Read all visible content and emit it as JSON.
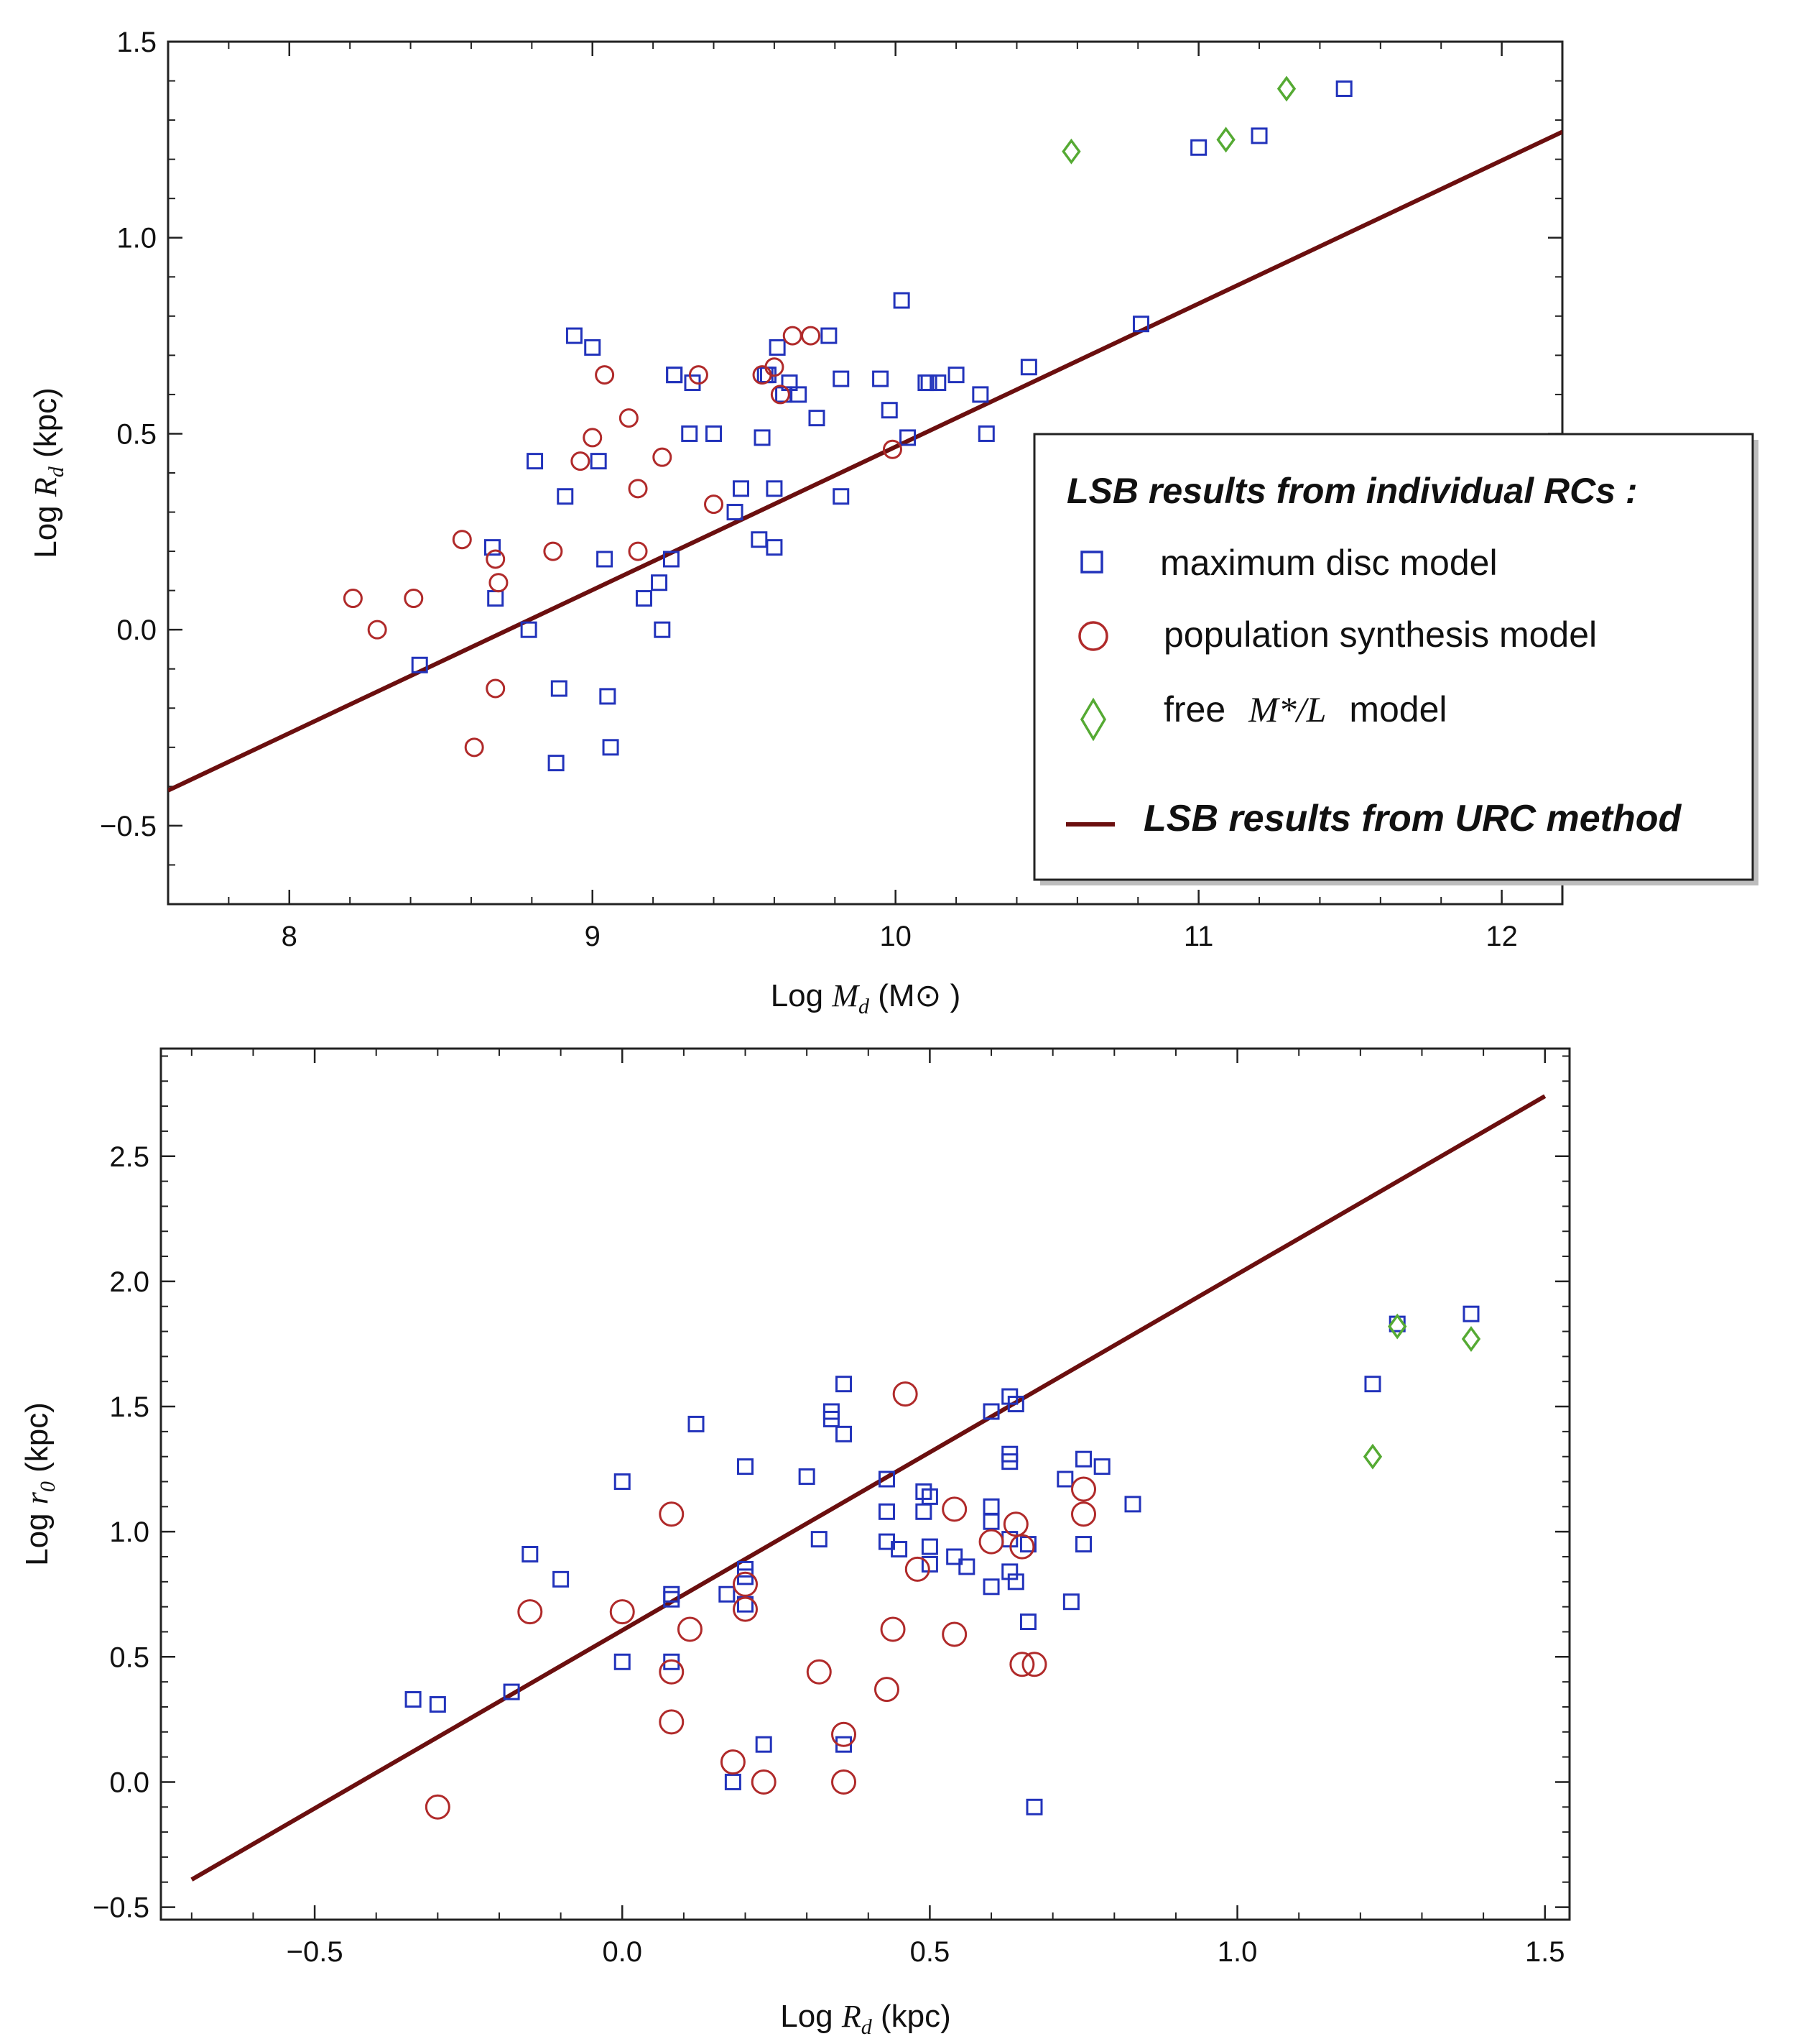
{
  "colors": {
    "square": "#2233bb",
    "circle": "#b02a2a",
    "diamond": "#55aa33",
    "fit_line": "#6b0f0f"
  },
  "legend": {
    "title": "LSB results from individual RCs :",
    "square_label": "maximum disc model",
    "circle_label": "population synthesis model",
    "diamond_label_pre": "free",
    "diamond_label_math": "M*/L",
    "diamond_label_post": "model",
    "line_label": "LSB results from URC method"
  },
  "chart_data": [
    {
      "type": "scatter",
      "title": "",
      "xlabel_prefix": "Log",
      "xlabel_var": "Md",
      "xlabel_unit": "(M⊙ )",
      "ylabel_prefix": "Log",
      "ylabel_var": "Rd",
      "ylabel_unit": "(kpc)",
      "xlim": [
        7.6,
        12.2
      ],
      "ylim": [
        -0.7,
        1.5
      ],
      "xticks": [
        "8",
        "9",
        "10",
        "11",
        "12"
      ],
      "xtick_values": [
        8,
        9,
        10,
        11,
        12
      ],
      "yticks": [
        "−0.5",
        "0.0",
        "0.5",
        "1.0",
        "1.5"
      ],
      "ytick_values": [
        -0.5,
        0,
        0.5,
        1.0,
        1.5
      ],
      "fit_line": {
        "x": [
          7.6,
          12.2
        ],
        "y": [
          -0.41,
          1.27
        ]
      },
      "series": [
        {
          "name": "maximum disc model",
          "marker": "square",
          "points": [
            [
              8.43,
              -0.09
            ],
            [
              8.67,
              0.21
            ],
            [
              8.68,
              0.08
            ],
            [
              8.79,
              0.0
            ],
            [
              8.81,
              0.43
            ],
            [
              8.88,
              -0.34
            ],
            [
              8.89,
              -0.15
            ],
            [
              8.91,
              0.34
            ],
            [
              8.94,
              0.75
            ],
            [
              9.0,
              0.72
            ],
            [
              9.02,
              0.43
            ],
            [
              9.04,
              0.18
            ],
            [
              9.05,
              -0.17
            ],
            [
              9.06,
              -0.3
            ],
            [
              9.17,
              0.08
            ],
            [
              9.22,
              0.12
            ],
            [
              9.23,
              0.0
            ],
            [
              9.26,
              0.18
            ],
            [
              9.27,
              0.65
            ],
            [
              9.27,
              0.65
            ],
            [
              9.32,
              0.5
            ],
            [
              9.33,
              0.63
            ],
            [
              9.4,
              0.5
            ],
            [
              9.47,
              0.3
            ],
            [
              9.49,
              0.36
            ],
            [
              9.55,
              0.23
            ],
            [
              9.56,
              0.49
            ],
            [
              9.57,
              0.65
            ],
            [
              9.58,
              0.65
            ],
            [
              9.6,
              0.21
            ],
            [
              9.6,
              0.36
            ],
            [
              9.61,
              0.72
            ],
            [
              9.63,
              0.6
            ],
            [
              9.65,
              0.63
            ],
            [
              9.68,
              0.6
            ],
            [
              9.74,
              0.54
            ],
            [
              9.78,
              0.75
            ],
            [
              9.82,
              0.34
            ],
            [
              9.82,
              0.64
            ],
            [
              9.95,
              0.64
            ],
            [
              9.98,
              0.56
            ],
            [
              10.02,
              0.84
            ],
            [
              10.04,
              0.49
            ],
            [
              10.1,
              0.63
            ],
            [
              10.11,
              0.63
            ],
            [
              10.14,
              0.63
            ],
            [
              10.2,
              0.65
            ],
            [
              10.28,
              0.6
            ],
            [
              10.3,
              0.5
            ],
            [
              10.44,
              0.67
            ],
            [
              10.81,
              0.78
            ],
            [
              11.0,
              1.23
            ],
            [
              11.2,
              1.26
            ],
            [
              11.48,
              1.38
            ]
          ]
        },
        {
          "name": "population synthesis model",
          "marker": "circle",
          "points": [
            [
              8.21,
              0.08
            ],
            [
              8.29,
              0.0
            ],
            [
              8.41,
              0.08
            ],
            [
              8.57,
              0.23
            ],
            [
              8.61,
              -0.3
            ],
            [
              8.68,
              0.18
            ],
            [
              8.69,
              0.12
            ],
            [
              8.68,
              -0.15
            ],
            [
              8.87,
              0.2
            ],
            [
              8.96,
              0.43
            ],
            [
              9.0,
              0.49
            ],
            [
              9.04,
              0.65
            ],
            [
              9.12,
              0.54
            ],
            [
              9.15,
              0.36
            ],
            [
              9.15,
              0.2
            ],
            [
              9.23,
              0.44
            ],
            [
              9.35,
              0.65
            ],
            [
              9.4,
              0.32
            ],
            [
              9.56,
              0.65
            ],
            [
              9.6,
              0.67
            ],
            [
              9.62,
              0.6
            ],
            [
              9.66,
              0.75
            ],
            [
              9.72,
              0.75
            ],
            [
              9.99,
              0.46
            ]
          ]
        },
        {
          "name": "free M*/L model",
          "marker": "diamond",
          "points": [
            [
              10.58,
              1.22
            ],
            [
              11.09,
              1.25
            ],
            [
              11.29,
              1.38
            ]
          ]
        }
      ]
    },
    {
      "type": "scatter",
      "title": "",
      "xlabel_prefix": "Log",
      "xlabel_var": "Rd",
      "xlabel_unit": "(kpc)",
      "ylabel_prefix": "Log",
      "ylabel_var": "r0",
      "ylabel_unit": "(kpc)",
      "xlim": [
        -0.75,
        1.54
      ],
      "ylim": [
        -0.55,
        2.93
      ],
      "xticks": [
        "−0.5",
        "0.0",
        "0.5",
        "1.0",
        "1.5"
      ],
      "xtick_values": [
        -0.5,
        0,
        0.5,
        1.0,
        1.5
      ],
      "yticks": [
        "−0.5",
        "0.0",
        "0.5",
        "1.0",
        "1.5",
        "2.0",
        "2.5"
      ],
      "ytick_values": [
        -0.5,
        0,
        0.5,
        1.0,
        1.5,
        2.0,
        2.5
      ],
      "fit_line": {
        "x": [
          -0.7,
          1.5
        ],
        "y": [
          -0.39,
          2.74
        ]
      },
      "series": [
        {
          "name": "maximum disc model",
          "marker": "square",
          "points": [
            [
              -0.34,
              0.33
            ],
            [
              -0.3,
              0.31
            ],
            [
              -0.18,
              0.36
            ],
            [
              -0.15,
              0.91
            ],
            [
              -0.1,
              0.81
            ],
            [
              0.0,
              1.2
            ],
            [
              0.0,
              0.48
            ],
            [
              0.08,
              0.75
            ],
            [
              0.08,
              0.73
            ],
            [
              0.08,
              0.48
            ],
            [
              0.12,
              1.43
            ],
            [
              0.17,
              0.75
            ],
            [
              0.18,
              0.0
            ],
            [
              0.2,
              1.26
            ],
            [
              0.2,
              0.85
            ],
            [
              0.2,
              0.82
            ],
            [
              0.2,
              0.71
            ],
            [
              0.23,
              0.15
            ],
            [
              0.3,
              1.22
            ],
            [
              0.32,
              0.97
            ],
            [
              0.34,
              1.48
            ],
            [
              0.34,
              1.45
            ],
            [
              0.36,
              1.59
            ],
            [
              0.36,
              1.39
            ],
            [
              0.36,
              0.15
            ],
            [
              0.43,
              1.21
            ],
            [
              0.43,
              1.08
            ],
            [
              0.43,
              0.96
            ],
            [
              0.45,
              0.93
            ],
            [
              0.49,
              1.16
            ],
            [
              0.49,
              1.08
            ],
            [
              0.5,
              1.14
            ],
            [
              0.5,
              0.94
            ],
            [
              0.5,
              0.87
            ],
            [
              0.54,
              0.9
            ],
            [
              0.56,
              0.86
            ],
            [
              0.6,
              1.48
            ],
            [
              0.6,
              1.1
            ],
            [
              0.6,
              1.04
            ],
            [
              0.6,
              0.78
            ],
            [
              0.63,
              1.54
            ],
            [
              0.63,
              1.31
            ],
            [
              0.63,
              1.28
            ],
            [
              0.63,
              0.97
            ],
            [
              0.63,
              0.84
            ],
            [
              0.64,
              1.51
            ],
            [
              0.64,
              0.8
            ],
            [
              0.66,
              0.95
            ],
            [
              0.66,
              0.64
            ],
            [
              0.67,
              -0.1
            ],
            [
              0.72,
              1.21
            ],
            [
              0.73,
              0.72
            ],
            [
              0.75,
              1.29
            ],
            [
              0.75,
              0.95
            ],
            [
              0.78,
              1.26
            ],
            [
              0.83,
              1.11
            ],
            [
              1.22,
              1.59
            ],
            [
              1.26,
              1.83
            ],
            [
              1.38,
              1.87
            ]
          ]
        },
        {
          "name": "population synthesis model",
          "marker": "circle",
          "points": [
            [
              -0.3,
              -0.1
            ],
            [
              -0.15,
              0.68
            ],
            [
              0.0,
              0.68
            ],
            [
              0.08,
              1.07
            ],
            [
              0.08,
              0.44
            ],
            [
              0.08,
              0.24
            ],
            [
              0.11,
              0.61
            ],
            [
              0.18,
              0.08
            ],
            [
              0.2,
              0.79
            ],
            [
              0.2,
              0.69
            ],
            [
              0.23,
              0.0
            ],
            [
              0.32,
              0.44
            ],
            [
              0.36,
              0.19
            ],
            [
              0.36,
              0.0
            ],
            [
              0.43,
              0.37
            ],
            [
              0.44,
              0.61
            ],
            [
              0.46,
              1.55
            ],
            [
              0.48,
              0.85
            ],
            [
              0.54,
              1.09
            ],
            [
              0.54,
              0.59
            ],
            [
              0.6,
              0.96
            ],
            [
              0.64,
              1.03
            ],
            [
              0.65,
              0.94
            ],
            [
              0.65,
              0.47
            ],
            [
              0.67,
              0.47
            ],
            [
              0.75,
              1.17
            ],
            [
              0.75,
              1.07
            ]
          ]
        },
        {
          "name": "free M*/L model",
          "marker": "diamond",
          "points": [
            [
              1.22,
              1.3
            ],
            [
              1.26,
              1.82
            ],
            [
              1.38,
              1.77
            ]
          ]
        }
      ]
    }
  ]
}
